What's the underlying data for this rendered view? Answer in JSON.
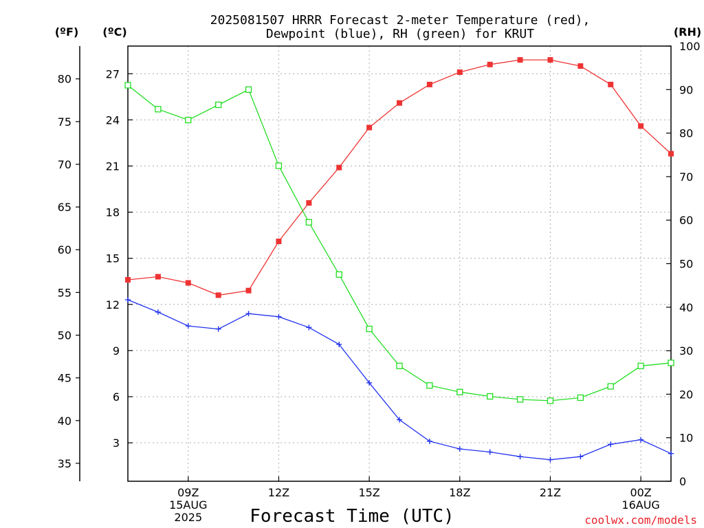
{
  "chart_data": {
    "type": "line",
    "title_line1": "2025081507 HRRR Forecast 2-meter Temperature (red),",
    "title_line2": "Dewpoint (blue), RH (green) for KRUT",
    "xlabel": "Forecast Time (UTC)",
    "credit": "coolwx.com/models",
    "units": {
      "fahrenheit": "(ºF)",
      "celsius": "(ºC)",
      "rh": "(RH)"
    },
    "x_hours": [
      "07Z",
      "08Z",
      "09Z",
      "10Z",
      "11Z",
      "12Z",
      "13Z",
      "14Z",
      "15Z",
      "16Z",
      "17Z",
      "18Z",
      "19Z",
      "20Z",
      "21Z",
      "22Z",
      "23Z",
      "00Z",
      "01Z"
    ],
    "x_ticks": [
      {
        "index": 2,
        "lines": [
          "09Z",
          "15AUG",
          "2025"
        ]
      },
      {
        "index": 5,
        "lines": [
          "12Z"
        ]
      },
      {
        "index": 8,
        "lines": [
          "15Z"
        ]
      },
      {
        "index": 11,
        "lines": [
          "18Z"
        ]
      },
      {
        "index": 14,
        "lines": [
          "21Z"
        ]
      },
      {
        "index": 17,
        "lines": [
          "00Z",
          "16AUG"
        ]
      }
    ],
    "celsius_axis": {
      "range": [
        0.5,
        28.8
      ],
      "ticks": [
        3,
        6,
        9,
        12,
        15,
        18,
        21,
        24,
        27
      ]
    },
    "fahrenheit_axis": {
      "range": [
        32.9,
        83.84
      ],
      "ticks": [
        35,
        40,
        45,
        50,
        55,
        60,
        65,
        70,
        75,
        80
      ]
    },
    "rh_axis": {
      "range": [
        0,
        100
      ],
      "ticks": [
        0,
        10,
        20,
        30,
        40,
        50,
        60,
        70,
        80,
        90,
        100
      ]
    },
    "grid": true,
    "series": [
      {
        "key": "temperature",
        "axis": "celsius",
        "color": "#ee3333",
        "marker": "filled-square",
        "values": [
          13.6,
          13.8,
          13.4,
          12.6,
          12.9,
          16.1,
          18.6,
          20.9,
          23.5,
          25.1,
          26.3,
          27.1,
          27.6,
          27.9,
          27.9,
          27.5,
          26.3,
          23.6,
          21.8
        ]
      },
      {
        "key": "dewpoint",
        "axis": "celsius",
        "color": "#2233ee",
        "marker": "plus",
        "values": [
          12.3,
          11.5,
          10.6,
          10.4,
          11.4,
          11.2,
          10.5,
          9.4,
          6.9,
          4.5,
          3.1,
          2.6,
          2.4,
          2.1,
          1.9,
          2.1,
          2.9,
          3.2,
          2.3
        ]
      },
      {
        "key": "rh",
        "axis": "rh",
        "color": "#22dd22",
        "marker": "open-square",
        "values": [
          91,
          85.5,
          83,
          86.5,
          90,
          72.5,
          59.5,
          47.5,
          35,
          26.5,
          22,
          20.5,
          19.5,
          18.8,
          18.5,
          19.2,
          21.8,
          26.5,
          27.2
        ]
      }
    ]
  }
}
